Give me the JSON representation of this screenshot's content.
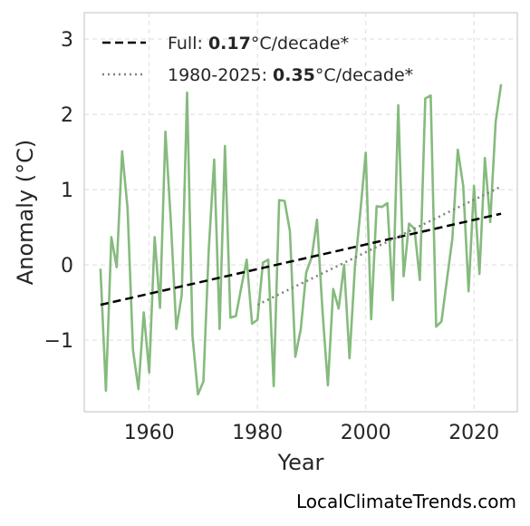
{
  "chart_data": {
    "type": "line",
    "title": "",
    "xlabel": "Year",
    "ylabel": "Anomaly (°C)",
    "xlim": [
      1948,
      2028
    ],
    "ylim": [
      -1.95,
      3.35
    ],
    "x_ticks": [
      1960,
      1980,
      2000,
      2020
    ],
    "x_tick_labels": [
      "1960",
      "1980",
      "2000",
      "2020"
    ],
    "y_ticks": [
      -1,
      0,
      1,
      2,
      3
    ],
    "y_tick_labels": [
      "−1",
      "0",
      "1",
      "2",
      "3"
    ],
    "grid": true,
    "legend_position": "top-left",
    "colors": {
      "series": "#86ba7e",
      "full_trend": "#000000",
      "recent_trend": "#808080",
      "frame": "#cccccc",
      "grid": "#dddddd"
    },
    "series": [
      {
        "x": [
          1951,
          1952,
          1953,
          1954,
          1955,
          1956,
          1957,
          1958,
          1959,
          1960,
          1961,
          1962,
          1963,
          1964,
          1965,
          1966,
          1967,
          1968,
          1969,
          1970,
          1971,
          1972,
          1973,
          1974,
          1975,
          1976,
          1977,
          1978,
          1979,
          1980,
          1981,
          1982,
          1983,
          1984,
          1985,
          1986,
          1987,
          1988,
          1989,
          1990,
          1991,
          1992,
          1993,
          1994,
          1995,
          1996,
          1997,
          1998,
          1999,
          2000,
          2001,
          2002,
          2003,
          2004,
          2005,
          2006,
          2007,
          2008,
          2009,
          2010,
          2011,
          2012,
          2013,
          2014,
          2015,
          2016,
          2017,
          2018,
          2019,
          2020,
          2021,
          2022,
          2023,
          2024,
          2025
        ],
        "values": [
          -0.05,
          -1.67,
          0.37,
          -0.03,
          1.51,
          0.75,
          -1.13,
          -1.65,
          -0.63,
          -1.43,
          0.37,
          -0.57,
          1.77,
          0.57,
          -0.85,
          -0.4,
          2.29,
          -0.95,
          -1.72,
          -1.55,
          0.2,
          1.4,
          -0.85,
          1.58,
          -0.7,
          -0.68,
          -0.3,
          0.07,
          -0.78,
          -0.73,
          0.03,
          0.07,
          -1.61,
          0.86,
          0.85,
          0.45,
          -1.22,
          -0.85,
          -0.1,
          0.1,
          0.6,
          -0.6,
          -1.6,
          -0.32,
          -0.58,
          0.0,
          -1.24,
          -0.02,
          0.7,
          1.49,
          -0.72,
          0.78,
          0.77,
          0.82,
          -0.47,
          2.12,
          -0.15,
          0.55,
          0.48,
          -0.2,
          2.21,
          2.25,
          -0.82,
          -0.75,
          -0.2,
          0.35,
          1.53,
          1.05,
          -0.35,
          1.05,
          -0.12,
          1.42,
          0.57,
          1.9,
          2.4
        ]
      }
    ],
    "trends": [
      {
        "label_prefix": "Full: ",
        "value": "0.17",
        "unit": "°C/decade*",
        "x": [
          1951,
          2025
        ],
        "y": [
          -0.53,
          0.68
        ],
        "style": "dashed"
      },
      {
        "label_prefix": "1980-2025: ",
        "value": "0.35",
        "unit": "°C/decade*",
        "x": [
          1980,
          2025
        ],
        "y": [
          -0.53,
          1.04
        ],
        "style": "dotted"
      }
    ]
  },
  "credit": "LocalClimateTrends.com"
}
